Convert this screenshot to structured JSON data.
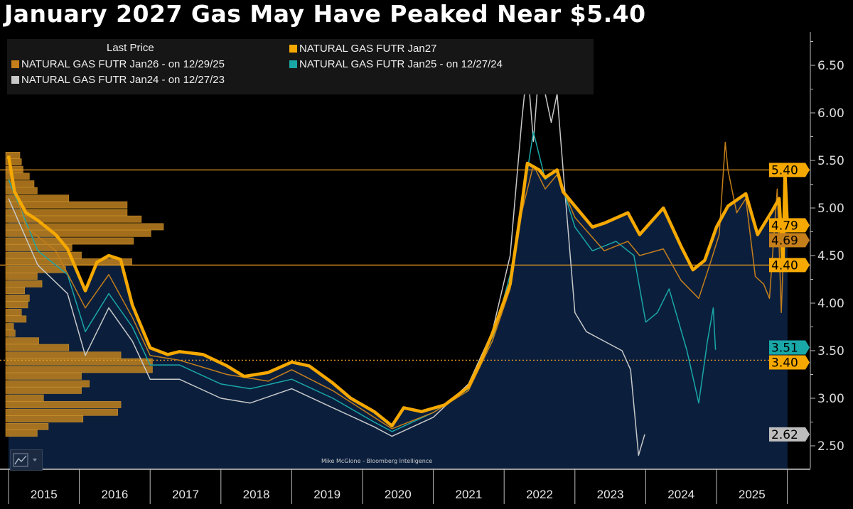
{
  "title": "January 2027 Gas May Have Peaked Near $5.40",
  "credit": "Mike McGlone - Bloomberg Intelligence",
  "legend": {
    "heading": "Last Price",
    "items": [
      {
        "label": "NATURAL GAS FUTR Jan27",
        "color": "#f5a800"
      },
      {
        "label": "NATURAL GAS FUTR Jan26 -  on 12/29/25",
        "color": "#c47e1a"
      },
      {
        "label": "NATURAL GAS FUTR Jan25 -  on 12/27/24",
        "color": "#1aa7a7"
      },
      {
        "label": "NATURAL GAS FUTR Jan24 -  on 12/27/23",
        "color": "#c8c8c8"
      }
    ]
  },
  "chart_data": {
    "type": "line",
    "title": "January 2027 Gas May Have Peaked Near $5.40",
    "x_ticks": [
      "2015",
      "2016",
      "2017",
      "2018",
      "2019",
      "2020",
      "2021",
      "2022",
      "2023",
      "2024",
      "2025"
    ],
    "xlim": [
      "2015-01-01",
      "2026-01-05"
    ],
    "ylim": [
      2.25,
      6.9
    ],
    "y_ticks": [
      "2.50",
      "3.00",
      "3.50",
      "4.00",
      "4.50",
      "5.00",
      "5.50",
      "6.00",
      "6.50"
    ],
    "y_axis_side": "right",
    "legend_placement": "top-left",
    "background_fill_under": "NATURAL GAS FUTR Jan27",
    "fill_color": "#0b1f3d",
    "reference_lines": [
      {
        "value": 5.4,
        "style": "solid",
        "label": "5.40"
      },
      {
        "value": 4.4,
        "style": "solid",
        "label": "4.40"
      },
      {
        "value": 3.4,
        "style": "dotted",
        "label": "3.40"
      }
    ],
    "last_value_tags": [
      {
        "label": "5.40",
        "value": 5.4,
        "color": "#f5a800"
      },
      {
        "label": "4.79",
        "value": 4.79,
        "color": "#f5a800"
      },
      {
        "label": "4.69",
        "value": 4.69,
        "color": "#c47e1a"
      },
      {
        "label": "4.40",
        "value": 4.4,
        "color": "#f5a800"
      },
      {
        "label": "3.51",
        "value": 3.51,
        "color": "#1aa7a7"
      },
      {
        "label": "3.40",
        "value": 3.4,
        "color": "#f5a800"
      },
      {
        "label": "2.62",
        "value": 2.62,
        "color": "#bdbdbd"
      }
    ],
    "volume_profile": {
      "color": "#b57b1e",
      "price_levels": [
        5.55,
        5.48,
        5.4,
        5.33,
        5.25,
        5.18,
        5.1,
        5.03,
        4.95,
        4.88,
        4.8,
        4.73,
        4.65,
        4.58,
        4.5,
        4.43,
        4.35,
        4.28,
        4.2,
        4.13,
        4.05,
        3.98,
        3.9,
        3.83,
        3.75,
        3.68,
        3.6,
        3.53,
        3.45,
        3.38,
        3.3,
        3.23,
        3.15,
        3.08,
        3.0,
        2.93,
        2.85,
        2.78,
        2.7,
        2.63
      ],
      "relative_volume": [
        9,
        10,
        11,
        15,
        18,
        20,
        40,
        77,
        77,
        86,
        100,
        92,
        81,
        42,
        48,
        80,
        38,
        20,
        23,
        12,
        15,
        14,
        10,
        13,
        5,
        6,
        21,
        40,
        73,
        93,
        93,
        48,
        53,
        48,
        24,
        73,
        71,
        49,
        27,
        20
      ]
    },
    "series": [
      {
        "name": "NATURAL GAS FUTR Jan27",
        "color": "#f5a800",
        "width": 4.5,
        "points": [
          [
            "2015-01-01",
            5.55
          ],
          [
            "2015-02-01",
            5.17
          ],
          [
            "2015-04-01",
            4.95
          ],
          [
            "2015-06-01",
            4.87
          ],
          [
            "2015-09-01",
            4.72
          ],
          [
            "2015-11-01",
            4.57
          ],
          [
            "2016-02-01",
            4.13
          ],
          [
            "2016-04-01",
            4.43
          ],
          [
            "2016-06-01",
            4.5
          ],
          [
            "2016-08-01",
            4.46
          ],
          [
            "2016-10-01",
            3.98
          ],
          [
            "2017-01-01",
            3.53
          ],
          [
            "2017-04-01",
            3.46
          ],
          [
            "2017-06-01",
            3.49
          ],
          [
            "2017-10-01",
            3.46
          ],
          [
            "2018-02-01",
            3.34
          ],
          [
            "2018-05-01",
            3.23
          ],
          [
            "2018-09-01",
            3.27
          ],
          [
            "2019-01-01",
            3.38
          ],
          [
            "2019-04-01",
            3.34
          ],
          [
            "2019-08-01",
            3.16
          ],
          [
            "2019-11-01",
            3.0
          ],
          [
            "2020-03-01",
            2.86
          ],
          [
            "2020-06-01",
            2.71
          ],
          [
            "2020-08-01",
            2.9
          ],
          [
            "2020-11-01",
            2.86
          ],
          [
            "2021-03-01",
            2.93
          ],
          [
            "2021-07-01",
            3.12
          ],
          [
            "2021-09-01",
            3.38
          ],
          [
            "2021-11-01",
            3.68
          ],
          [
            "2022-02-01",
            4.2
          ],
          [
            "2022-04-01",
            5.02
          ],
          [
            "2022-05-01",
            5.47
          ],
          [
            "2022-07-01",
            5.4
          ],
          [
            "2022-08-01",
            5.32
          ],
          [
            "2022-10-01",
            5.4
          ],
          [
            "2022-11-01",
            5.17
          ],
          [
            "2023-01-01",
            5.02
          ],
          [
            "2023-04-01",
            4.8
          ],
          [
            "2023-06-01",
            4.84
          ],
          [
            "2023-10-01",
            4.95
          ],
          [
            "2023-12-01",
            4.72
          ],
          [
            "2024-04-01",
            5.0
          ],
          [
            "2024-07-01",
            4.6
          ],
          [
            "2024-09-01",
            4.35
          ],
          [
            "2024-11-01",
            4.45
          ],
          [
            "2025-01-01",
            4.8
          ],
          [
            "2025-03-01",
            5.02
          ],
          [
            "2025-06-01",
            5.15
          ],
          [
            "2025-08-01",
            4.72
          ],
          [
            "2025-10-15",
            4.97
          ],
          [
            "2025-11-20",
            5.1
          ],
          [
            "2025-12-10",
            4.37
          ],
          [
            "2025-12-20",
            5.38
          ],
          [
            "2026-01-02",
            4.79
          ]
        ]
      },
      {
        "name": "NATURAL GAS FUTR Jan26 -  on 12/29/25",
        "color": "#c47e1a",
        "width": 1.5,
        "points": [
          [
            "2015-01-01",
            5.4
          ],
          [
            "2015-04-01",
            4.8
          ],
          [
            "2015-09-01",
            4.55
          ],
          [
            "2016-02-01",
            3.95
          ],
          [
            "2016-06-01",
            4.3
          ],
          [
            "2016-10-01",
            3.85
          ],
          [
            "2017-01-01",
            3.45
          ],
          [
            "2017-06-01",
            3.4
          ],
          [
            "2018-02-01",
            3.25
          ],
          [
            "2018-09-01",
            3.18
          ],
          [
            "2019-01-01",
            3.3
          ],
          [
            "2019-08-01",
            3.08
          ],
          [
            "2020-03-01",
            2.8
          ],
          [
            "2020-06-01",
            2.68
          ],
          [
            "2021-01-01",
            2.85
          ],
          [
            "2021-07-01",
            3.08
          ],
          [
            "2021-11-01",
            3.6
          ],
          [
            "2022-02-01",
            4.15
          ],
          [
            "2022-04-01",
            4.95
          ],
          [
            "2022-06-01",
            5.45
          ],
          [
            "2022-08-01",
            5.2
          ],
          [
            "2022-10-01",
            5.35
          ],
          [
            "2023-01-01",
            4.9
          ],
          [
            "2023-06-01",
            4.55
          ],
          [
            "2023-10-01",
            4.65
          ],
          [
            "2023-12-01",
            4.5
          ],
          [
            "2024-04-01",
            4.57
          ],
          [
            "2024-07-01",
            4.24
          ],
          [
            "2024-10-01",
            4.05
          ],
          [
            "2024-12-01",
            4.43
          ],
          [
            "2025-01-15",
            4.72
          ],
          [
            "2025-02-15",
            5.69
          ],
          [
            "2025-03-01",
            5.4
          ],
          [
            "2025-04-15",
            4.95
          ],
          [
            "2025-06-01",
            5.1
          ],
          [
            "2025-07-20",
            4.28
          ],
          [
            "2025-09-01",
            4.2
          ],
          [
            "2025-10-01",
            4.05
          ],
          [
            "2025-11-10",
            5.2
          ],
          [
            "2025-12-01",
            3.9
          ],
          [
            "2025-12-15",
            4.72
          ],
          [
            "2025-12-29",
            4.69
          ]
        ]
      },
      {
        "name": "NATURAL GAS FUTR Jan25 -  on 12/27/24",
        "color": "#1aa7a7",
        "width": 1.5,
        "points": [
          [
            "2015-01-01",
            5.3
          ],
          [
            "2015-06-01",
            4.55
          ],
          [
            "2015-11-01",
            4.3
          ],
          [
            "2016-02-01",
            3.7
          ],
          [
            "2016-06-01",
            4.1
          ],
          [
            "2016-10-01",
            3.75
          ],
          [
            "2017-01-01",
            3.35
          ],
          [
            "2017-06-01",
            3.35
          ],
          [
            "2018-01-01",
            3.15
          ],
          [
            "2018-06-01",
            3.1
          ],
          [
            "2019-01-01",
            3.2
          ],
          [
            "2019-08-01",
            3.0
          ],
          [
            "2020-03-01",
            2.75
          ],
          [
            "2020-06-01",
            2.65
          ],
          [
            "2021-01-01",
            2.85
          ],
          [
            "2021-07-01",
            3.1
          ],
          [
            "2021-11-01",
            3.6
          ],
          [
            "2022-02-01",
            4.3
          ],
          [
            "2022-04-01",
            5.0
          ],
          [
            "2022-06-01",
            5.8
          ],
          [
            "2022-08-01",
            5.3
          ],
          [
            "2022-10-01",
            5.4
          ],
          [
            "2023-01-01",
            4.8
          ],
          [
            "2023-04-01",
            4.55
          ],
          [
            "2023-08-01",
            4.65
          ],
          [
            "2023-11-01",
            4.5
          ],
          [
            "2024-01-01",
            3.8
          ],
          [
            "2024-03-01",
            3.9
          ],
          [
            "2024-05-01",
            4.15
          ],
          [
            "2024-08-01",
            3.5
          ],
          [
            "2024-10-01",
            2.95
          ],
          [
            "2024-11-15",
            3.6
          ],
          [
            "2024-12-15",
            3.95
          ],
          [
            "2024-12-27",
            3.51
          ]
        ]
      },
      {
        "name": "NATURAL GAS FUTR Jan24 -  on 12/27/23",
        "color": "#c8c8c8",
        "width": 1.5,
        "points": [
          [
            "2015-01-01",
            5.1
          ],
          [
            "2015-06-01",
            4.4
          ],
          [
            "2015-11-01",
            4.1
          ],
          [
            "2016-02-01",
            3.45
          ],
          [
            "2016-06-01",
            3.95
          ],
          [
            "2016-10-01",
            3.6
          ],
          [
            "2017-01-01",
            3.2
          ],
          [
            "2017-06-01",
            3.2
          ],
          [
            "2018-01-01",
            3.0
          ],
          [
            "2018-06-01",
            2.95
          ],
          [
            "2019-01-01",
            3.1
          ],
          [
            "2019-08-01",
            2.9
          ],
          [
            "2020-03-01",
            2.7
          ],
          [
            "2020-06-01",
            2.6
          ],
          [
            "2021-01-01",
            2.8
          ],
          [
            "2021-07-01",
            3.15
          ],
          [
            "2021-11-01",
            3.7
          ],
          [
            "2022-02-01",
            4.5
          ],
          [
            "2022-04-01",
            5.9
          ],
          [
            "2022-05-01",
            6.5
          ],
          [
            "2022-06-01",
            5.7
          ],
          [
            "2022-07-01",
            6.5
          ],
          [
            "2022-09-01",
            5.9
          ],
          [
            "2022-10-01",
            6.2
          ],
          [
            "2022-11-01",
            5.4
          ],
          [
            "2023-01-01",
            3.9
          ],
          [
            "2023-03-01",
            3.7
          ],
          [
            "2023-06-01",
            3.6
          ],
          [
            "2023-09-01",
            3.5
          ],
          [
            "2023-10-15",
            3.3
          ],
          [
            "2023-11-25",
            2.4
          ],
          [
            "2023-12-27",
            2.62
          ]
        ]
      }
    ]
  }
}
